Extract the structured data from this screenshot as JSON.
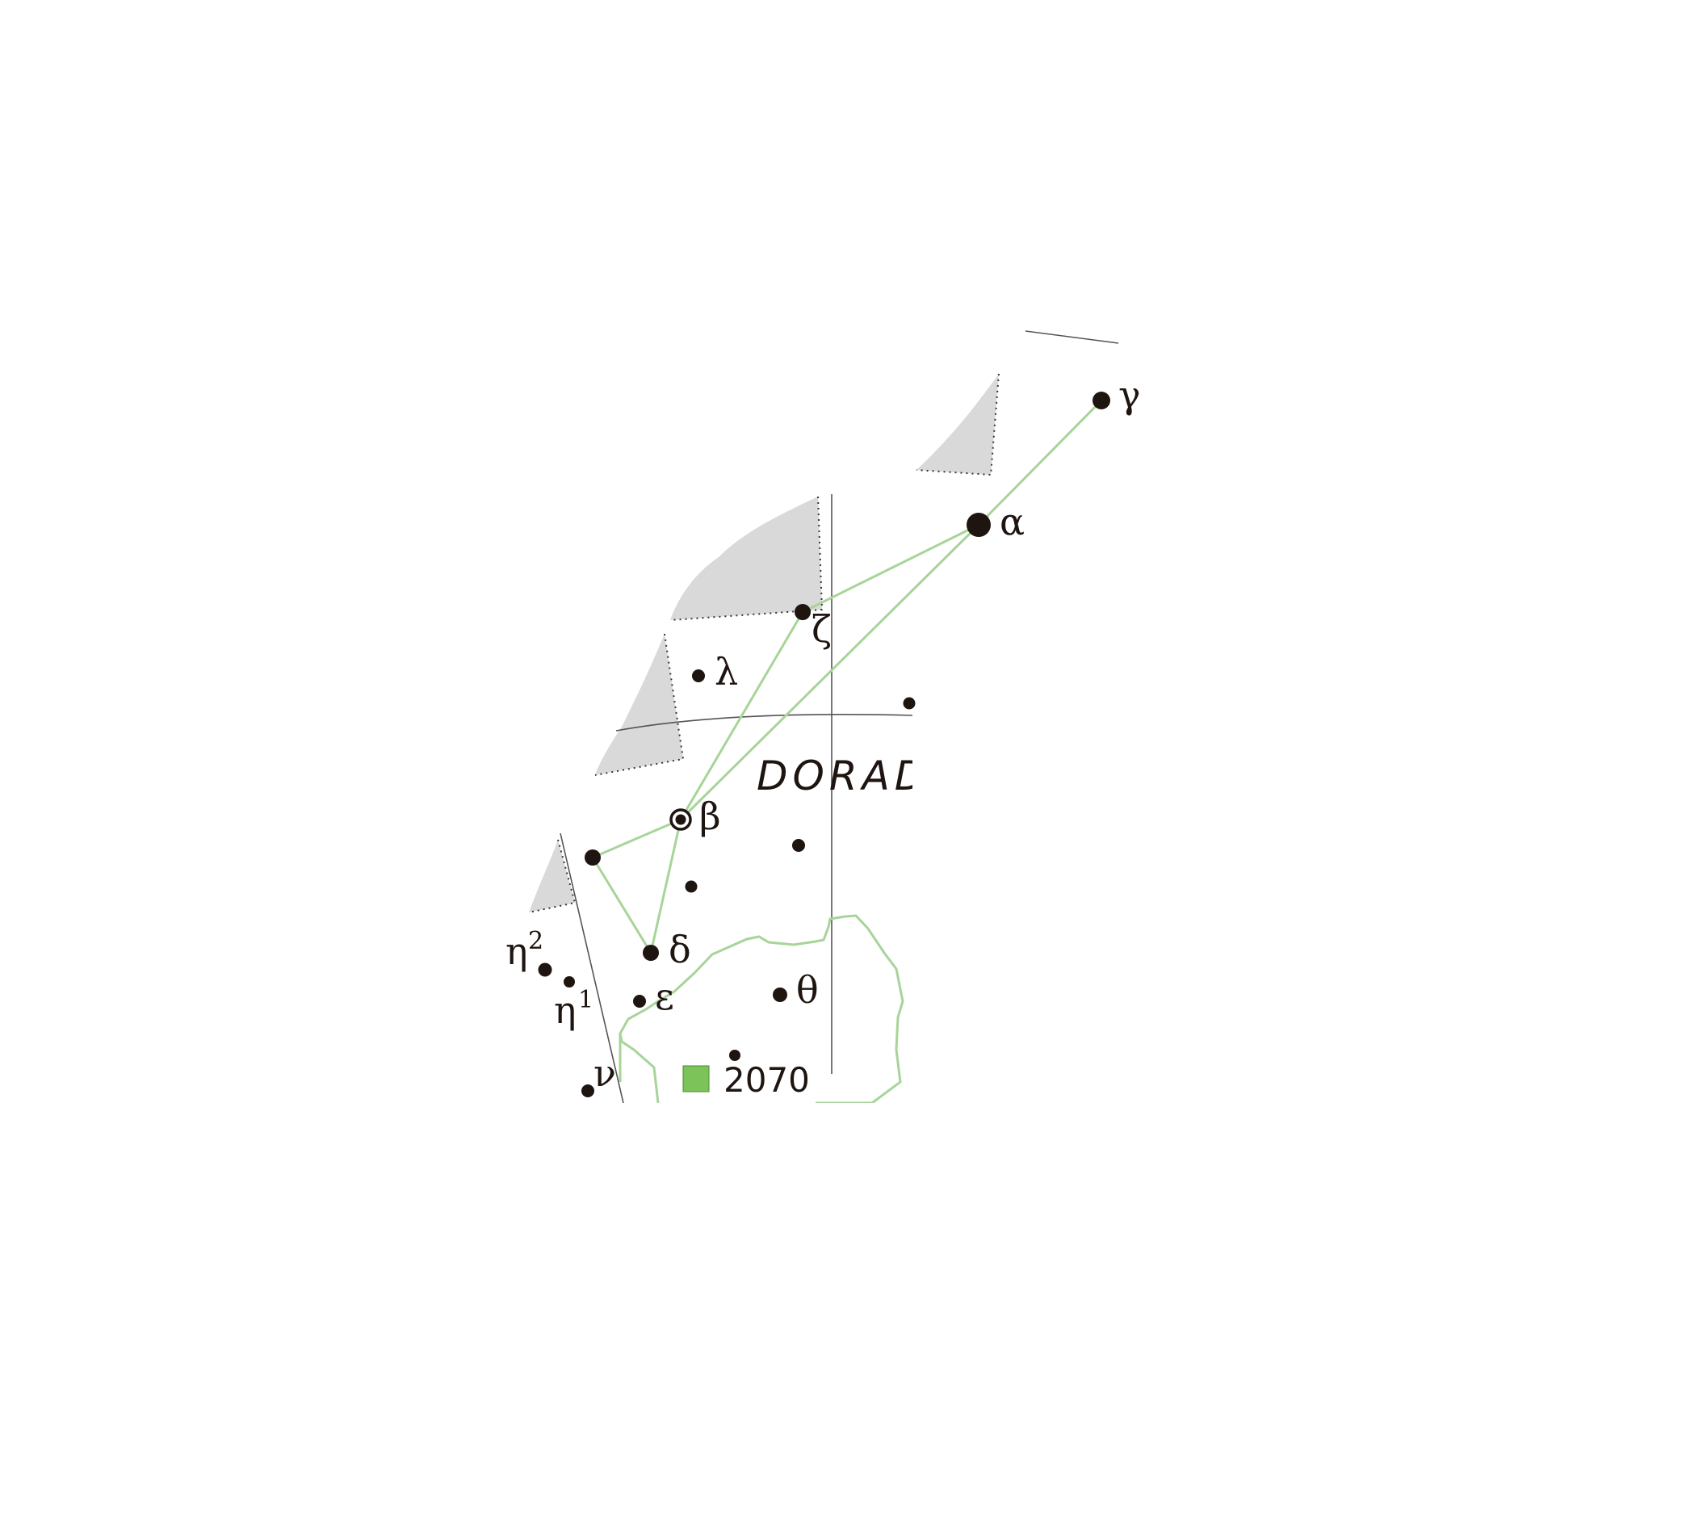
{
  "colors": {
    "background": "#ffffff",
    "star": "#1e1410",
    "constellation_line": "#a8d49a",
    "boundary": "#555555",
    "milky_way": "#d9d9d9",
    "lmc_outline": "#a8d49a",
    "nebula_marker": "#7cc45a"
  },
  "constellation": {
    "name": "DORADO"
  },
  "stars": {
    "alpha": "α",
    "beta": "β",
    "gamma": "γ",
    "delta": "δ",
    "epsilon": "ε",
    "zeta": "ζ",
    "eta": "η",
    "eta1_index": "1",
    "eta2_index": "2",
    "theta": "θ",
    "lambda": "λ",
    "nu": "ν"
  },
  "deep_sky": {
    "ngc_label": "2070",
    "icon": "nebula-square-icon"
  }
}
